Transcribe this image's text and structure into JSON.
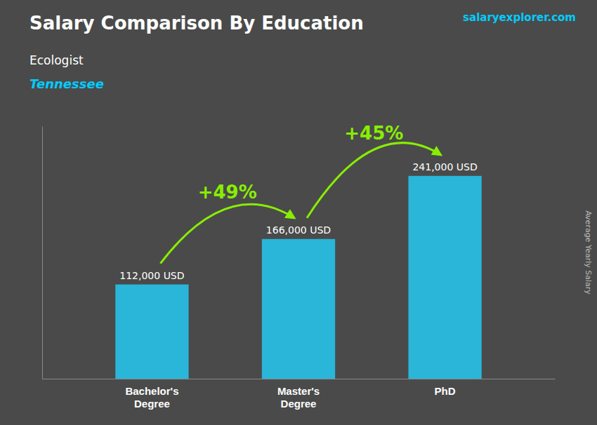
{
  "chart_data": {
    "type": "bar",
    "title": "Salary Comparison By Education",
    "subtitle": [
      "Ecologist",
      "Tennessee"
    ],
    "ylabel": "Average Yearly Salary",
    "source": "salaryexplorer.com",
    "categories": [
      "Bachelor's\nDegree",
      "Master's\nDegree",
      "PhD"
    ],
    "values": [
      112000,
      166000,
      241000
    ],
    "value_labels": [
      "112,000 USD",
      "166,000 USD",
      "241,000 USD"
    ],
    "data_labels": true,
    "color": "#29b6d8",
    "ylim": [
      0,
      300000
    ],
    "yticks": [],
    "tick_labels": "x",
    "grid": false,
    "annotations": [
      "+49%",
      "+45%"
    ]
  }
}
